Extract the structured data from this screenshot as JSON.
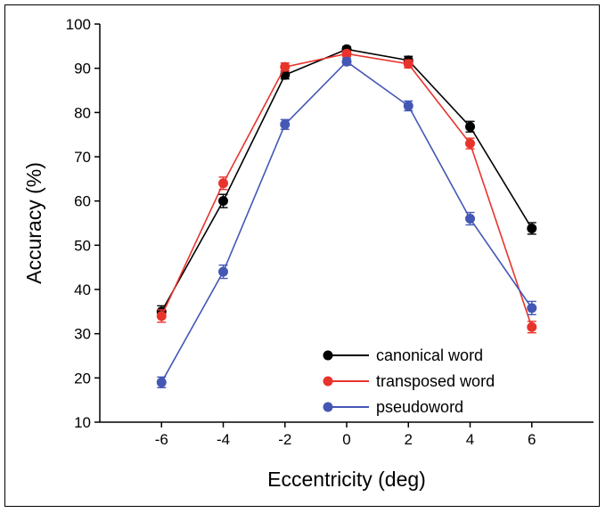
{
  "chart_data": {
    "type": "line",
    "xlabel": "Eccentricity (deg)",
    "ylabel": "Accuracy (%)",
    "x": [
      -6,
      -4,
      -2,
      0,
      2,
      4,
      6
    ],
    "xlim": [
      -8,
      8
    ],
    "ylim": [
      10,
      100
    ],
    "xticks": [
      "-6",
      "-4",
      "-2",
      "0",
      "2",
      "4",
      "6"
    ],
    "yticks": [
      "10",
      "20",
      "30",
      "40",
      "50",
      "60",
      "70",
      "80",
      "90",
      "100"
    ],
    "grid": false,
    "legend_position": "bottom-right",
    "error_bars": true,
    "series": [
      {
        "name": "canonical word",
        "color": "#000000",
        "values": [
          35.0,
          60.0,
          88.5,
          94.3,
          91.8,
          76.8,
          53.8
        ],
        "errors": [
          1.3,
          1.5,
          0.9,
          0.6,
          0.9,
          1.2,
          1.3
        ]
      },
      {
        "name": "transposed word",
        "color": "#e8332c",
        "values": [
          34.0,
          64.0,
          90.3,
          93.3,
          91.0,
          73.0,
          31.5
        ],
        "errors": [
          1.4,
          1.4,
          0.9,
          0.6,
          0.9,
          1.2,
          1.3
        ]
      },
      {
        "name": "pseudoword",
        "color": "#4457b5",
        "values": [
          19.0,
          44.0,
          77.3,
          91.5,
          81.5,
          56.0,
          35.8
        ],
        "errors": [
          1.2,
          1.5,
          1.1,
          0.8,
          1.1,
          1.4,
          1.5
        ]
      }
    ]
  }
}
